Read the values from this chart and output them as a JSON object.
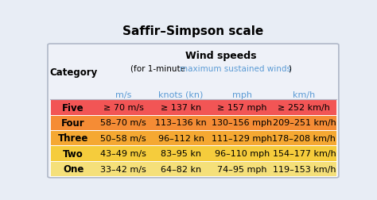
{
  "title": "Saffir–Simpson scale",
  "wind_speeds_header": "Wind speeds",
  "subtitle_plain1": "(for 1-minute ",
  "subtitle_colored": "maximum sustained winds",
  "subtitle_plain2": ")",
  "col_headers": [
    "m/s",
    "knots (kn)",
    "mph",
    "km/h"
  ],
  "categories": [
    "Five",
    "Four",
    "Three",
    "Two",
    "One"
  ],
  "row_colors": [
    "#f25555",
    "#f58c35",
    "#f5a832",
    "#f5cc3c",
    "#f5e07a"
  ],
  "data": [
    [
      "≥ 70 m/s",
      "≥ 137 kn",
      "≥ 157 mph",
      "≥ 252 km/h"
    ],
    [
      "58–70 m/s",
      "113–136 kn",
      "130–156 mph",
      "209–251 km/h"
    ],
    [
      "50–58 m/s",
      "96–112 kn",
      "111–129 mph",
      "178–208 km/h"
    ],
    [
      "43–49 m/s",
      "83–95 kn",
      "96–110 mph",
      "154–177 km/h"
    ],
    [
      "33–42 m/s",
      "64–82 kn",
      "74–95 mph",
      "119–153 km/h"
    ]
  ],
  "header_color": "#5b9bd5",
  "bg_color": "#e8edf5",
  "panel_bg": "#eef1f8",
  "border_color": "#b0b8c8",
  "title_color": "#000000",
  "cat_text_color": "#000000",
  "data_text_color": "#000000",
  "subtitle_link_color": "#5b9bd5",
  "figsize": [
    4.74,
    2.53
  ],
  "dpi": 100
}
